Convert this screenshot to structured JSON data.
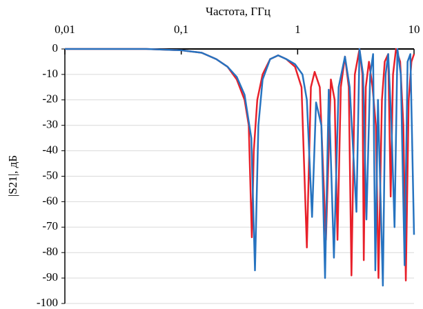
{
  "chart_data": {
    "type": "line",
    "title": "Частота, ГГц",
    "y_label": "|S21|, дБ",
    "x_scale": "log",
    "xlim": [
      0.01,
      10
    ],
    "xticks": [
      {
        "value": 0.01,
        "label": "0,01"
      },
      {
        "value": 0.1,
        "label": "0,1"
      },
      1,
      10
    ],
    "ylim": [
      -100,
      0
    ],
    "yticks": [
      0,
      -10,
      -20,
      -30,
      -40,
      -50,
      -60,
      -70,
      -80,
      -90,
      -100
    ],
    "grid": true,
    "series": [
      {
        "color": "#e8202a",
        "x": [
          0.01,
          0.05,
          0.1,
          0.15,
          0.2,
          0.25,
          0.3,
          0.35,
          0.38,
          0.404,
          0.42,
          0.45,
          0.5,
          0.58,
          0.68,
          0.8,
          0.95,
          1.08,
          1.2,
          1.3,
          1.4,
          1.55,
          1.75,
          1.93,
          2.08,
          2.2,
          2.35,
          2.55,
          2.75,
          2.9,
          3.1,
          3.4,
          3.6,
          3.7,
          3.85,
          4.1,
          4.4,
          4.7,
          4.95,
          5.3,
          5.6,
          6.0,
          6.3,
          6.6,
          7.0,
          7.6,
          8.1,
          8.5,
          9.0,
          9.5,
          10
        ],
        "values": [
          0,
          0,
          -0.5,
          -1.5,
          -4,
          -7,
          -12,
          -20,
          -30,
          -74,
          -40,
          -20,
          -10,
          -4,
          -2.5,
          -4,
          -7,
          -15,
          -78,
          -15,
          -9,
          -15,
          -75,
          -12,
          -20,
          -75,
          -15,
          -3,
          -15,
          -89,
          -10,
          0,
          -10,
          -83,
          -15,
          -5,
          -15,
          -30,
          -90,
          -20,
          -5,
          -2,
          -58,
          -10,
          0,
          -5,
          -30,
          -91,
          -20,
          -5,
          -2
        ]
      },
      {
        "color": "#2673c0",
        "x": [
          0.01,
          0.05,
          0.1,
          0.15,
          0.2,
          0.25,
          0.3,
          0.35,
          0.4,
          0.43,
          0.46,
          0.5,
          0.58,
          0.68,
          0.8,
          0.95,
          1.1,
          1.2,
          1.33,
          1.44,
          1.6,
          1.72,
          1.85,
          2.05,
          2.25,
          2.55,
          2.8,
          3.0,
          3.2,
          3.4,
          3.65,
          3.9,
          4.2,
          4.45,
          4.65,
          4.9,
          5.4,
          5.7,
          6.0,
          6.4,
          6.8,
          7.2,
          7.7,
          8.3,
          8.8,
          9.3,
          10
        ],
        "values": [
          0,
          0,
          -0.5,
          -1.5,
          -4,
          -7,
          -11,
          -18,
          -35,
          -87,
          -30,
          -12,
          -4,
          -2.5,
          -4,
          -6,
          -10,
          -20,
          -66,
          -21,
          -30,
          -90,
          -16,
          -82,
          -15,
          -3,
          -15,
          -40,
          -64,
          0,
          -10,
          -67,
          -10,
          -2,
          -87,
          -20,
          -93,
          -10,
          -2,
          -30,
          -70,
          0,
          -10,
          -85,
          -5,
          -2,
          -73
        ]
      }
    ]
  }
}
